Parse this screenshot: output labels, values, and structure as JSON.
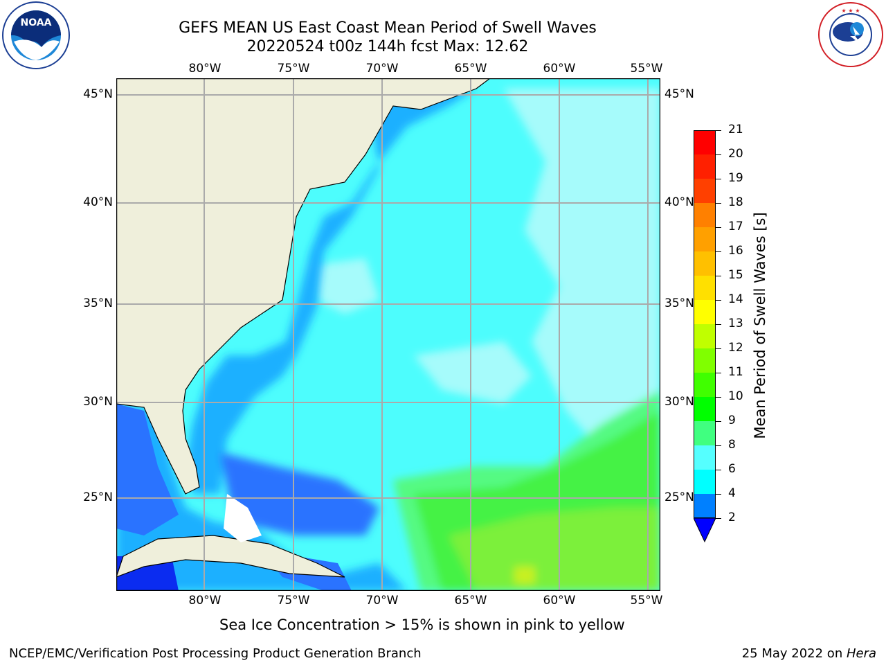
{
  "title": {
    "line1": "GEFS MEAN US East Coast Mean Period of Swell Waves",
    "line2": "20220524 t00z 144h fcst   Max: 12.62"
  },
  "map": {
    "lon_labels": [
      "80°W",
      "75°W",
      "70°W",
      "65°W",
      "60°W",
      "55°W"
    ],
    "lat_labels": [
      "45°N",
      "40°N",
      "35°N",
      "30°N",
      "25°N"
    ]
  },
  "colorbar": {
    "label": "Mean Period of Swell Waves [s]",
    "ticks": [
      "21",
      "20",
      "19",
      "18",
      "17",
      "16",
      "15",
      "14",
      "13",
      "12",
      "11",
      "10",
      "9",
      "8",
      "6",
      "4",
      "2"
    ],
    "colors": [
      "#ff0000",
      "#ff2000",
      "#ff4000",
      "#ff6000",
      "#ff8000",
      "#ffa000",
      "#ffc000",
      "#ffe000",
      "#ffff00",
      "#e0ff00",
      "#c0ff00",
      "#80ff00",
      "#40ff00",
      "#00ff00",
      "#40ff80",
      "#aaffff",
      "#55ffff",
      "#00ffff",
      "#0080ff",
      "#0000ff"
    ]
  },
  "logos": {
    "left": "noaa-logo",
    "right": "nws-logo",
    "noaa_text": "NOAA",
    "noaa_ring": "NATIONAL OCEANIC AND ATMOSPHERIC ADMINISTRATION · U.S. DEPARTMENT OF COMMERCE",
    "nws_ring": "NATIONAL WEATHER SERVICE"
  },
  "footer": {
    "note": "Sea Ice Concentration > 15% is shown in pink to yellow",
    "credit": "NCEP/EMC/Verification Post Processing Product Generation Branch",
    "date": "25 May 2022 on ",
    "machine": "Hera"
  }
}
